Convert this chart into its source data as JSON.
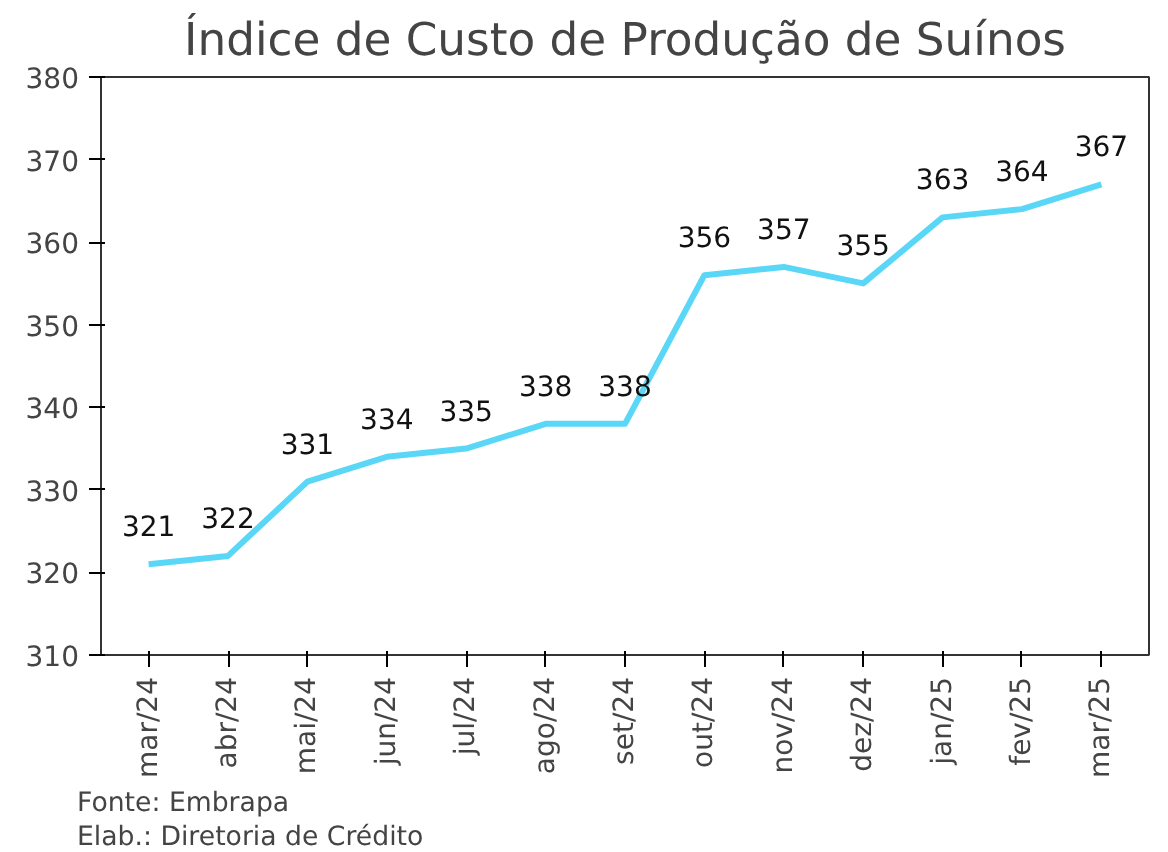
{
  "chart_data": {
    "type": "line",
    "title": "Índice de Custo de Produção de Suínos",
    "categories": [
      "mar/24",
      "abr/24",
      "mai/24",
      "jun/24",
      "jul/24",
      "ago/24",
      "set/24",
      "out/24",
      "nov/24",
      "dez/24",
      "jan/25",
      "fev/25",
      "mar/25"
    ],
    "series": [
      {
        "color": "#5ad7f7",
        "values": [
          321,
          322,
          331,
          334,
          335,
          338,
          338,
          356,
          357,
          355,
          363,
          364,
          367
        ]
      }
    ],
    "ylim": [
      310,
      380
    ],
    "yticks": [
      310,
      320,
      330,
      340,
      350,
      360,
      370,
      380
    ],
    "data_labels": true,
    "grid": false,
    "marker": "none",
    "line_style": "solid",
    "annotations": [
      "Fonte: Embrapa",
      "Elab.: Diretoria de Crédito"
    ]
  }
}
